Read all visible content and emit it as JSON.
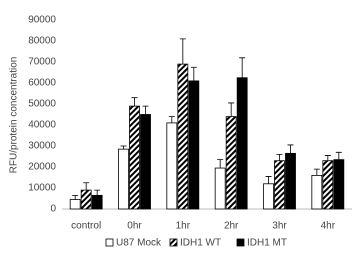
{
  "chart_data": {
    "type": "bar",
    "y_label": "RFU/protein concentration",
    "categories": [
      "control",
      "0hr",
      "1hr",
      "2hr",
      "3hr",
      "4hr"
    ],
    "series": [
      {
        "name": "U87 Mock",
        "color": "#ffffff",
        "pattern": "solid",
        "values": [
          4500,
          28500,
          41000,
          19500,
          12000,
          16000
        ],
        "errors": [
          2000,
          1500,
          3000,
          4000,
          3500,
          3000
        ]
      },
      {
        "name": "IDH1 WT",
        "color": "#000000",
        "pattern": "hatch",
        "values": [
          9000,
          49000,
          69000,
          44000,
          23000,
          23000
        ],
        "errors": [
          3500,
          4000,
          12000,
          6500,
          3000,
          2500
        ]
      },
      {
        "name": "IDH1 MT",
        "color": "#000000",
        "pattern": "solid",
        "values": [
          6500,
          45000,
          61000,
          62500,
          26500,
          23500
        ],
        "errors": [
          2500,
          4000,
          6500,
          9500,
          4000,
          3500
        ]
      }
    ],
    "ylim": [
      0,
      90000
    ],
    "yticks": [
      0,
      10000,
      20000,
      30000,
      40000,
      50000,
      60000,
      70000,
      80000,
      90000
    ],
    "grid": false,
    "legend": "bottom"
  }
}
